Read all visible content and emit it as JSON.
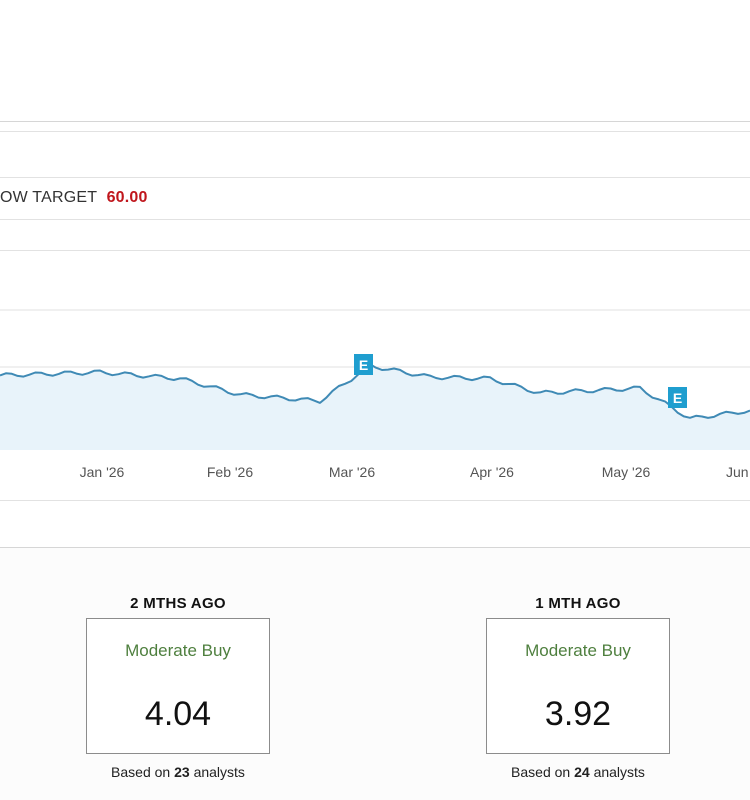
{
  "low_target": {
    "label": "OW TARGET",
    "value": "60.00"
  },
  "chart": {
    "x_axis_labels": [
      "Jan '26",
      "Feb '26",
      "Mar '26",
      "Apr '26",
      "May '26",
      "Jun"
    ],
    "earnings_marker_label": "E",
    "colors": {
      "line": "#3f8ab5",
      "fill": "#e8f3fa",
      "marker": "#1f9ecf",
      "grid": "#e2e2e2"
    }
  },
  "chart_data": {
    "type": "area",
    "x": [
      "Dec '25 (late)",
      "Jan '26",
      "Jan '26 (mid)",
      "Feb '26",
      "Feb '26 (mid)",
      "Mar '26",
      "Mar '26 (mid)",
      "Apr '26",
      "Apr '26 (mid)",
      "May '26",
      "May '26 (mid)",
      "Jun"
    ],
    "series": [
      {
        "values": [
          0.62,
          0.66,
          0.58,
          0.38,
          0.3,
          0.74,
          0.6,
          0.58,
          0.4,
          0.46,
          0.08,
          0.18
        ]
      }
    ],
    "events": [
      {
        "label": "E",
        "x": "Mar '26"
      },
      {
        "label": "E",
        "x": "May '26 (late)"
      }
    ]
  },
  "ratings": [
    {
      "period": "2 MTHS AGO",
      "rating": "Moderate Buy",
      "score": "4.04",
      "basis_prefix": "Based on",
      "analysts": "23",
      "basis_suffix": "analysts"
    },
    {
      "period": "1 MTH AGO",
      "rating": "Moderate Buy",
      "score": "3.92",
      "basis_prefix": "Based on",
      "analysts": "24",
      "basis_suffix": "analysts"
    }
  ]
}
